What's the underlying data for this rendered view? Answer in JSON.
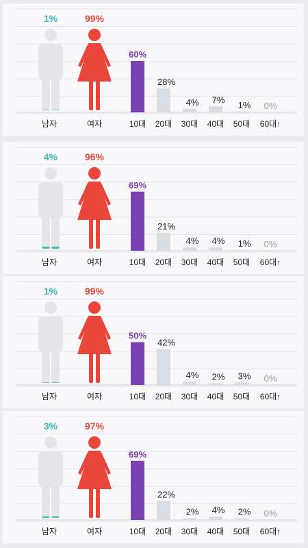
{
  "chart_data": [
    {
      "type": "bar",
      "gender": {
        "male_label": "남자",
        "female_label": "여자",
        "male_pct": "1%",
        "female_pct": "99%",
        "male_value": 1,
        "female_value": 99
      },
      "categories": [
        "10대",
        "20대",
        "30대",
        "40대",
        "50대",
        "60대↑"
      ],
      "values": [
        60,
        28,
        4,
        7,
        1,
        0
      ],
      "value_labels": [
        "60%",
        "28%",
        "4%",
        "7%",
        "1%",
        "0%"
      ],
      "highlight_index": 0
    },
    {
      "type": "bar",
      "gender": {
        "male_label": "남자",
        "female_label": "여자",
        "male_pct": "4%",
        "female_pct": "96%",
        "male_value": 4,
        "female_value": 96
      },
      "categories": [
        "10대",
        "20대",
        "30대",
        "40대",
        "50대",
        "60대↑"
      ],
      "values": [
        69,
        21,
        4,
        4,
        1,
        0
      ],
      "value_labels": [
        "69%",
        "21%",
        "4%",
        "4%",
        "1%",
        "0%"
      ],
      "highlight_index": 0
    },
    {
      "type": "bar",
      "gender": {
        "male_label": "남자",
        "female_label": "여자",
        "male_pct": "1%",
        "female_pct": "99%",
        "male_value": 1,
        "female_value": 99
      },
      "categories": [
        "10대",
        "20대",
        "30대",
        "40대",
        "50대",
        "60대↑"
      ],
      "values": [
        50,
        42,
        4,
        2,
        3,
        0
      ],
      "value_labels": [
        "50%",
        "42%",
        "4%",
        "2%",
        "3%",
        "0%"
      ],
      "highlight_index": 0
    },
    {
      "type": "bar",
      "gender": {
        "male_label": "남자",
        "female_label": "여자",
        "male_pct": "3%",
        "female_pct": "97%",
        "male_value": 3,
        "female_value": 97
      },
      "categories": [
        "10대",
        "20대",
        "30대",
        "40대",
        "50대",
        "60대↑"
      ],
      "values": [
        69,
        22,
        2,
        4,
        2,
        0
      ],
      "value_labels": [
        "69%",
        "22%",
        "2%",
        "4%",
        "2%",
        "0%"
      ],
      "highlight_index": 0
    }
  ],
  "colors": {
    "male": "#3bb8b8",
    "female": "#e8463a",
    "silhouette": "#e6e6e8",
    "highlight_bar": "#7a3fb0",
    "bar": "#d8dde3",
    "zero_label": "#9a9a9a",
    "grid": "#e4e4e8"
  }
}
